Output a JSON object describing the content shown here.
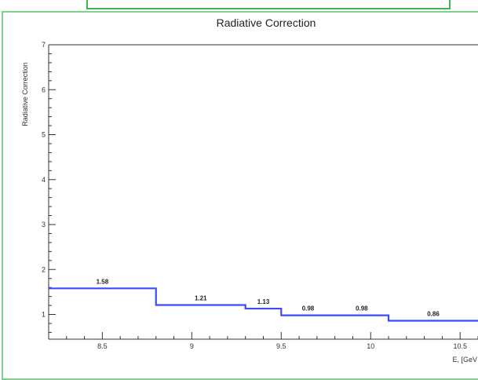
{
  "chart_data": {
    "type": "step",
    "title": "Radiative Correction",
    "ylabel": "Radiative Correction",
    "xlabel": "E, [GeV",
    "xlim": [
      8.2,
      10.6
    ],
    "ylim": [
      0.45,
      7
    ],
    "x_ticks": [
      "8.5",
      "9",
      "9.5",
      "10",
      "10.5"
    ],
    "y_ticks": [
      "1",
      "2",
      "3",
      "4",
      "5",
      "6",
      "7"
    ],
    "bins": [
      {
        "x0": 8.2,
        "x1": 8.8,
        "value": 1.58,
        "label": "1.58"
      },
      {
        "x0": 8.8,
        "x1": 9.3,
        "value": 1.21,
        "label": "1.21"
      },
      {
        "x0": 9.3,
        "x1": 9.5,
        "value": 1.13,
        "label": "1.13"
      },
      {
        "x0": 9.5,
        "x1": 9.8,
        "value": 0.98,
        "label": "0.98"
      },
      {
        "x0": 9.8,
        "x1": 10.1,
        "value": 0.98,
        "label": "0.98"
      },
      {
        "x0": 10.1,
        "x1": 10.6,
        "value": 0.86,
        "label": "0.86"
      }
    ],
    "line_color": "#3a4cff",
    "grid": false
  },
  "colors": {
    "frame_border": "#7fd08a",
    "tab_border": "#3fb84e"
  }
}
